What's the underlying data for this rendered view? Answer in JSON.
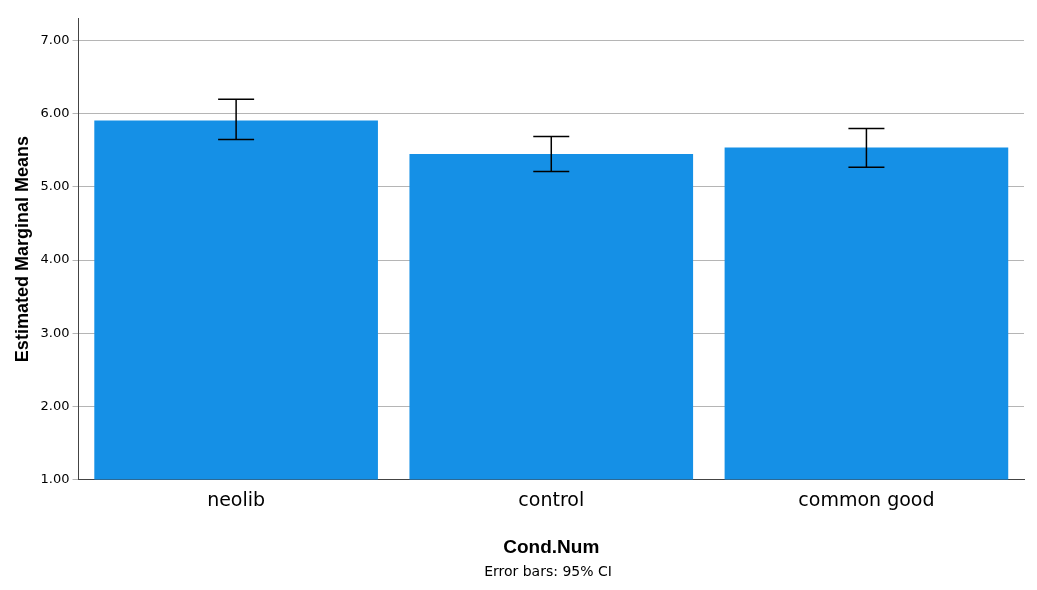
{
  "chart_data": {
    "type": "bar",
    "xlabel": "Cond.Num",
    "ylabel": "Estimated Marginal Means",
    "categories": [
      "neolib",
      "control",
      "common good"
    ],
    "values": [
      5.91,
      5.45,
      5.54
    ],
    "errors": [
      [
        5.65,
        6.2
      ],
      [
        5.21,
        5.69
      ],
      [
        5.27,
        5.8
      ]
    ],
    "color": "#1590e6",
    "ylim": [
      1,
      7.3
    ],
    "yticks": [
      {
        "value": 1,
        "label": "1.00"
      },
      {
        "value": 2,
        "label": "2.00"
      },
      {
        "value": 3,
        "label": "3.00"
      },
      {
        "value": 4,
        "label": "4.00"
      },
      {
        "value": 5,
        "label": "5.00"
      },
      {
        "value": 6,
        "label": "6.00"
      },
      {
        "value": 7,
        "label": "7.00"
      }
    ],
    "grid": "y",
    "annotations": [
      "Error bars: 95% CI"
    ]
  }
}
